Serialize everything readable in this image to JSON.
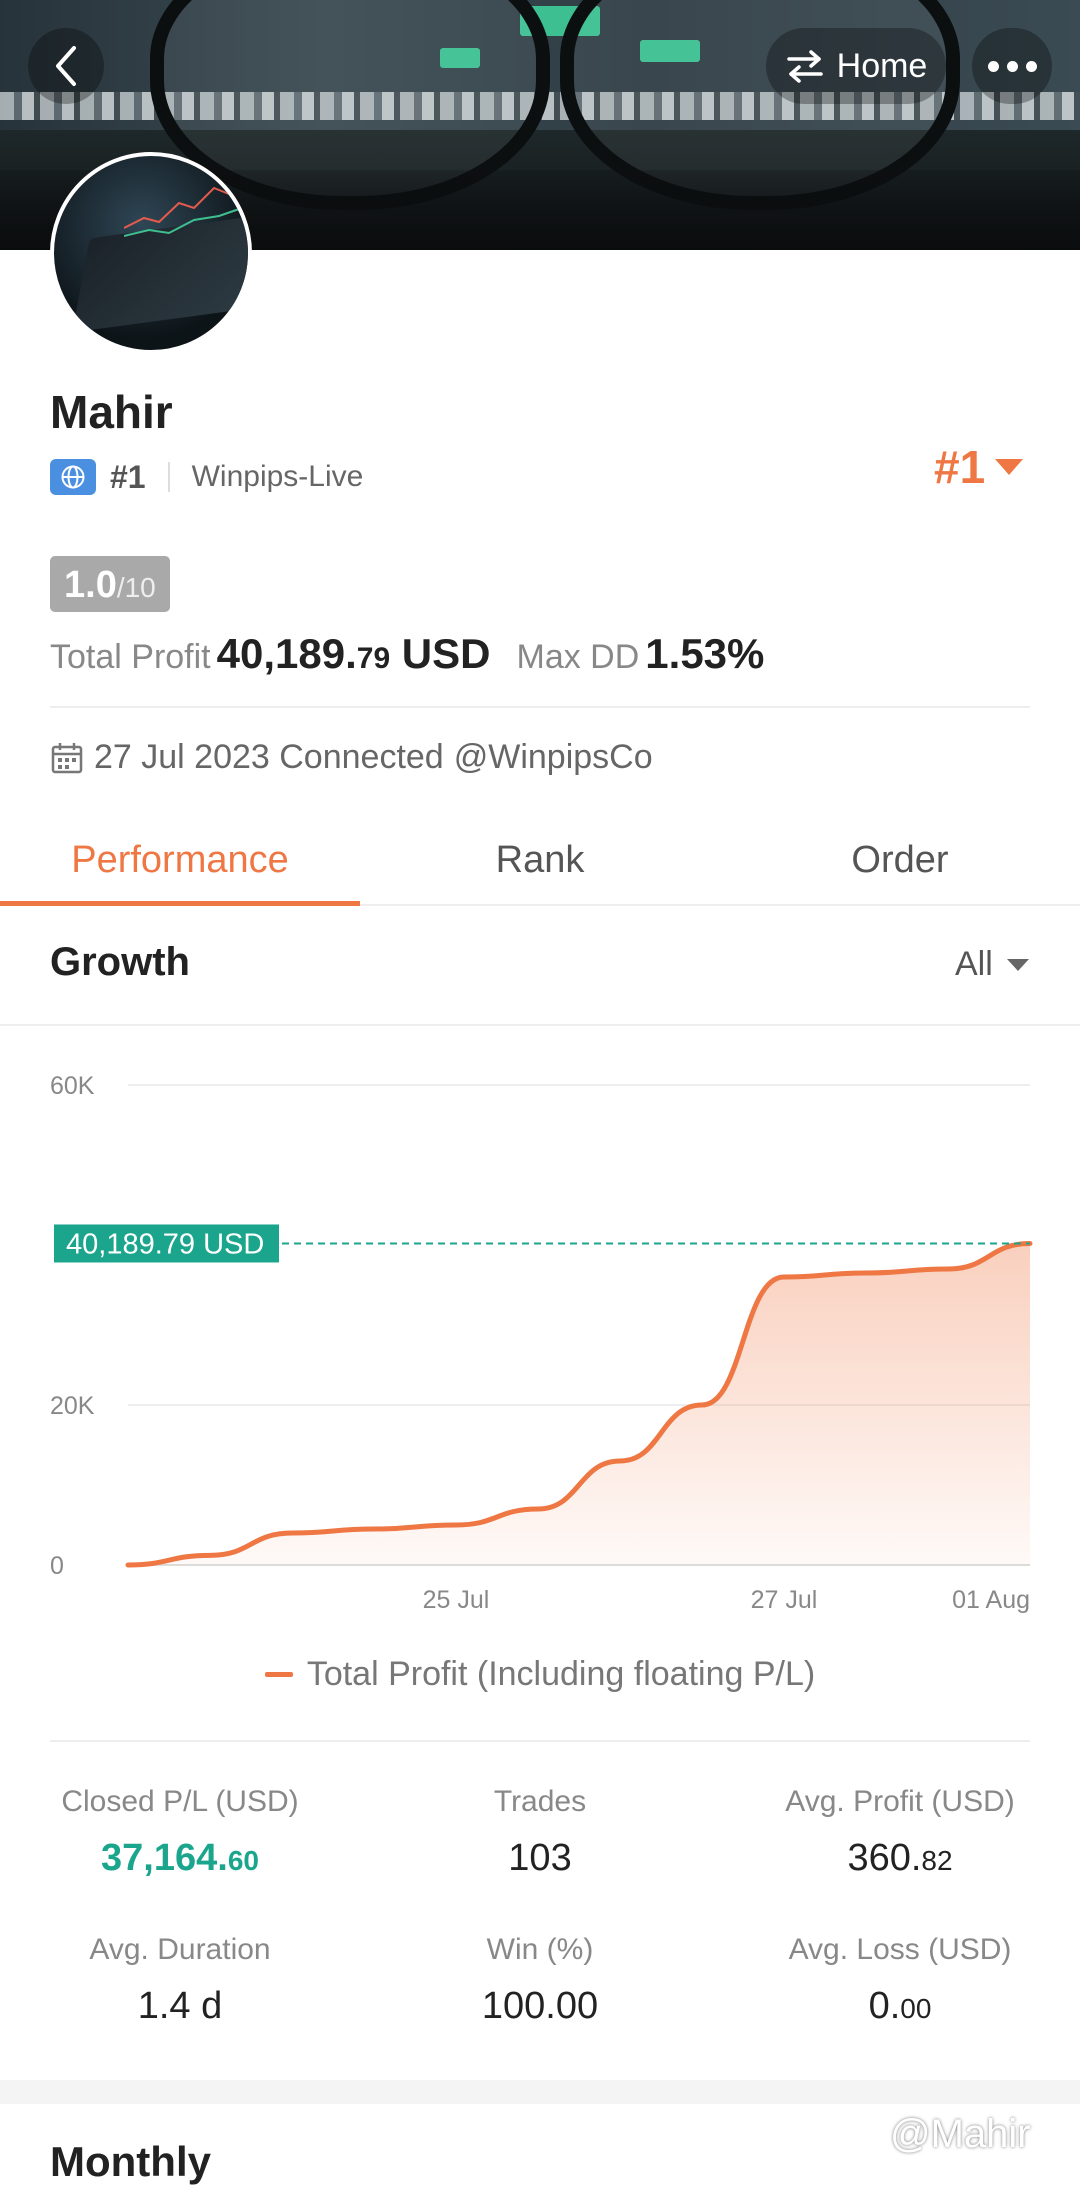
{
  "header": {
    "home_label": "Home",
    "icons": {
      "back": "chevron-left-icon",
      "swap": "swap-arrows-icon",
      "more": "more-dots-icon"
    }
  },
  "profile": {
    "name": "Mahir",
    "rank_small": "#1",
    "broker": "Winpips-Live",
    "rank_big": "#1",
    "score_main": "1.0",
    "score_sub": "/10",
    "total_profit_label": "Total Profit",
    "total_profit_main": "40,189.",
    "total_profit_decimal": "79",
    "total_profit_currency": " USD",
    "max_dd_label": "Max DD",
    "max_dd_value": "1.53%",
    "connected_text": "27 Jul 2023 Connected",
    "handle": "@WinpipsCo"
  },
  "tabs": [
    {
      "label": "Performance",
      "active": true
    },
    {
      "label": "Rank",
      "active": false
    },
    {
      "label": "Order",
      "active": false
    }
  ],
  "growth": {
    "title": "Growth",
    "filter_label": "All"
  },
  "chart_data": {
    "type": "area",
    "x": [
      "23 Jul",
      "23.5 Jul",
      "24 Jul",
      "24.5 Jul",
      "25 Jul",
      "25.5 Jul",
      "26 Jul",
      "26.5 Jul",
      "27 Jul",
      "28 Jul",
      "30 Jul",
      "01 Aug"
    ],
    "y": [
      0,
      1200,
      4000,
      4500,
      5000,
      7000,
      13000,
      20000,
      36000,
      36500,
      37000,
      40189.79
    ],
    "x_tick_labels": [
      "25 Jul",
      "27 Jul",
      "01 Aug"
    ],
    "y_tick_labels": [
      "60K",
      "20K",
      "0"
    ],
    "y_ticks": [
      60000,
      20000,
      0
    ],
    "ylim": [
      0,
      60000
    ],
    "current_value_label": "40,189.79 USD",
    "current_value": 40189.79,
    "legend": "Total Profit (Including floating P/L)",
    "line_color": "#ee7744",
    "marker_color": "#1aa58c",
    "grid": true
  },
  "stats": [
    {
      "label": "Closed P/L (USD)",
      "main": "37,164.",
      "decimal": "60",
      "teal": true
    },
    {
      "label": "Trades",
      "main": "103",
      "decimal": "",
      "teal": false
    },
    {
      "label": "Avg. Profit (USD)",
      "main": "360.",
      "decimal": "82",
      "teal": false
    },
    {
      "label": "Avg. Duration",
      "main": "1.4 d",
      "decimal": "",
      "teal": false
    },
    {
      "label": "Win (%)",
      "main": "100.00",
      "decimal": "",
      "teal": false
    },
    {
      "label": "Avg. Loss (USD)",
      "main": "0.",
      "decimal": "00",
      "teal": false
    }
  ],
  "monthly_title": "Monthly",
  "watermark": "@Mahir"
}
